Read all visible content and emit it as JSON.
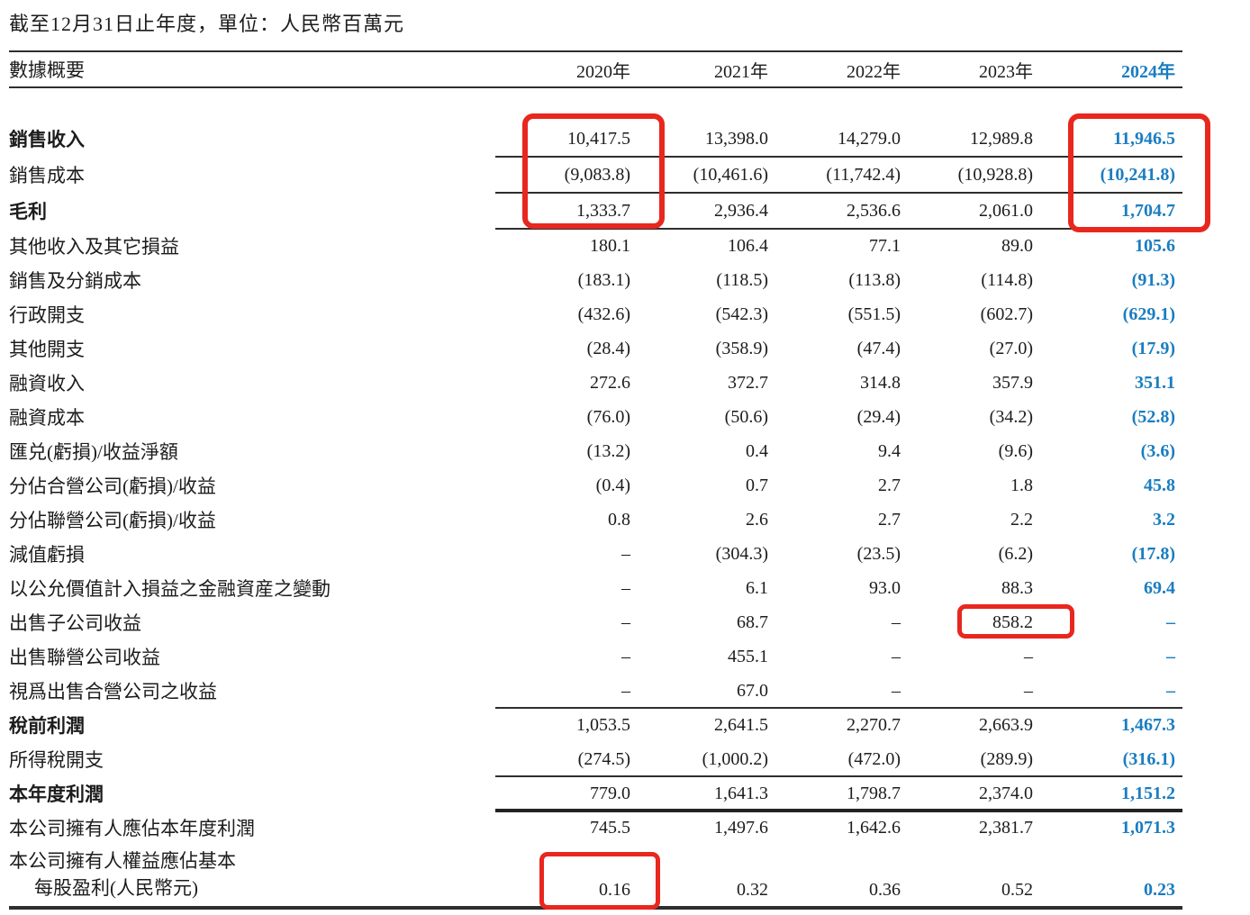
{
  "title": "截至12月31日止年度，單位：人民幣百萬元",
  "colors": {
    "highlight_year": "#1a7dc0",
    "annotation_box": "#e8271e"
  },
  "table": {
    "header": {
      "label": "數據概要",
      "years": [
        "2020年",
        "2021年",
        "2022年",
        "2023年",
        "2024年"
      ]
    },
    "rows": [
      {
        "label": "銷售收入",
        "bold": true,
        "sep": "thin",
        "values": [
          "10,417.5",
          "13,398.0",
          "14,279.0",
          "12,989.8",
          "11,946.5"
        ]
      },
      {
        "label": "銷售成本",
        "sep": "thin",
        "values": [
          "(9,083.8)",
          "(10,461.6)",
          "(11,742.4)",
          "(10,928.8)",
          "(10,241.8)"
        ]
      },
      {
        "label": "毛利",
        "bold": true,
        "sep": "thin",
        "values": [
          "1,333.7",
          "2,936.4",
          "2,536.6",
          "2,061.0",
          "1,704.7"
        ]
      },
      {
        "label": "其他收入及其它損益",
        "values": [
          "180.1",
          "106.4",
          "77.1",
          "89.0",
          "105.6"
        ]
      },
      {
        "label": "銷售及分銷成本",
        "values": [
          "(183.1)",
          "(118.5)",
          "(113.8)",
          "(114.8)",
          "(91.3)"
        ]
      },
      {
        "label": "行政開支",
        "values": [
          "(432.6)",
          "(542.3)",
          "(551.5)",
          "(602.7)",
          "(629.1)"
        ]
      },
      {
        "label": "其他開支",
        "values": [
          "(28.4)",
          "(358.9)",
          "(47.4)",
          "(27.0)",
          "(17.9)"
        ]
      },
      {
        "label": "融資收入",
        "values": [
          "272.6",
          "372.7",
          "314.8",
          "357.9",
          "351.1"
        ]
      },
      {
        "label": "融資成本",
        "values": [
          "(76.0)",
          "(50.6)",
          "(29.4)",
          "(34.2)",
          "(52.8)"
        ]
      },
      {
        "label": "匯兑(虧損)/收益淨額",
        "values": [
          "(13.2)",
          "0.4",
          "9.4",
          "(9.6)",
          "(3.6)"
        ]
      },
      {
        "label": "分佔合營公司(虧損)/收益",
        "values": [
          "(0.4)",
          "0.7",
          "2.7",
          "1.8",
          "45.8"
        ]
      },
      {
        "label": "分佔聯營公司(虧損)/收益",
        "values": [
          "0.8",
          "2.6",
          "2.7",
          "2.2",
          "3.2"
        ]
      },
      {
        "label": "減值虧損",
        "values": [
          "–",
          "(304.3)",
          "(23.5)",
          "(6.2)",
          "(17.8)"
        ]
      },
      {
        "label": "以公允價值計入損益之金融資産之變動",
        "values": [
          "–",
          "6.1",
          "93.0",
          "88.3",
          "69.4"
        ]
      },
      {
        "label": "出售子公司收益",
        "values": [
          "–",
          "68.7",
          "–",
          "858.2",
          "–"
        ]
      },
      {
        "label": "出售聯營公司收益",
        "values": [
          "–",
          "455.1",
          "–",
          "–",
          "–"
        ]
      },
      {
        "label": "視爲出售合營公司之收益",
        "sep": "thin",
        "values": [
          "–",
          "67.0",
          "–",
          "–",
          "–"
        ]
      },
      {
        "label": "稅前利潤",
        "bold": true,
        "values": [
          "1,053.5",
          "2,641.5",
          "2,270.7",
          "2,663.9",
          "1,467.3"
        ]
      },
      {
        "label": "所得稅開支",
        "sep": "thin",
        "values": [
          "(274.5)",
          "(1,000.2)",
          "(472.0)",
          "(289.9)",
          "(316.1)"
        ]
      },
      {
        "label": "本年度利潤",
        "bold": true,
        "sep": "thick",
        "values": [
          "779.0",
          "1,641.3",
          "1,798.7",
          "2,374.0",
          "1,151.2"
        ]
      },
      {
        "label": "本公司擁有人應佔本年度利潤",
        "values": [
          "745.5",
          "1,497.6",
          "1,642.6",
          "2,381.7",
          "1,071.3"
        ]
      },
      {
        "label": "本公司擁有人權益應佔基本",
        "label2": "每股盈利(人民幣元)",
        "values": [
          "0.16",
          "0.32",
          "0.36",
          "0.52",
          "0.23"
        ]
      }
    ]
  },
  "annotations": [
    {
      "target": "2020年 銷售收入/銷售成本/毛利",
      "highlighted_values": "10,417.5 / (9,083.8) / 1,333.7"
    },
    {
      "target": "2024年 銷售收入/銷售成本/毛利",
      "highlighted_values": "11,946.5 / (10,241.8) / 1,704.7"
    },
    {
      "target": "2023年 出售子公司收益",
      "highlighted_values": "858.2"
    },
    {
      "target": "2020年 每股盈利(人民幣元)",
      "highlighted_values": "0.16"
    }
  ]
}
